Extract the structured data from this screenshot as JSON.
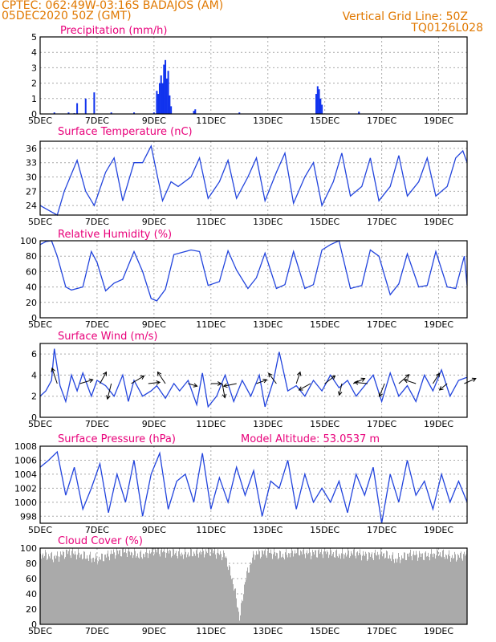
{
  "header": {
    "line1": "CPTEC:   062:49W-03:16S   BADAJOS (AM)",
    "line2": "05DEC2020 50Z (GMT)",
    "vertical_grid": "Vertical Grid Line: 50Z",
    "code": "TQ0126L028"
  },
  "colors": {
    "line": "#2244dd",
    "bar": "#1133ee",
    "cloud": "#aaaaaa",
    "title": "#e8007a",
    "header": "#e07800"
  },
  "chart_data": [
    {
      "type": "bar",
      "title": "Precipitation  (mm/h)",
      "x_ticks": [
        "5DEC",
        "7DEC",
        "9DEC",
        "11DEC",
        "13DEC",
        "15DEC",
        "17DEC",
        "19DEC"
      ],
      "ylim": [
        0,
        5
      ],
      "y_ticks": [
        0,
        1,
        2,
        3,
        4,
        5
      ],
      "x_range_days": [
        5,
        20
      ],
      "x": [
        5.5,
        6.0,
        6.2,
        6.3,
        6.6,
        6.9,
        7.5,
        8.3,
        9.0,
        9.1,
        9.15,
        9.2,
        9.25,
        9.3,
        9.35,
        9.4,
        9.45,
        9.5,
        9.55,
        9.6,
        10.4,
        10.45,
        12.0,
        14.7,
        14.75,
        14.8,
        14.85,
        14.9,
        16.2
      ],
      "values": [
        0.1,
        0.1,
        0.05,
        0.7,
        1.0,
        1.4,
        0.1,
        0.1,
        0.1,
        1.5,
        1.3,
        2.0,
        2.5,
        2.0,
        3.2,
        3.5,
        2.3,
        2.8,
        1.2,
        0.5,
        0.2,
        0.3,
        0.1,
        1.3,
        1.8,
        1.6,
        1.0,
        0.6,
        0.15
      ]
    },
    {
      "type": "line",
      "title": "Surface Temperature  (nC)",
      "ylim": [
        22,
        37.5
      ],
      "y_ticks": [
        24,
        27,
        30,
        33,
        36
      ],
      "x": [
        5.0,
        5.3,
        5.6,
        5.85,
        6.3,
        6.6,
        6.9,
        7.3,
        7.6,
        7.9,
        8.3,
        8.6,
        8.9,
        9.3,
        9.6,
        9.85,
        10.3,
        10.6,
        10.9,
        11.3,
        11.6,
        11.9,
        12.3,
        12.6,
        12.9,
        13.3,
        13.6,
        13.9,
        14.3,
        14.6,
        14.9,
        15.3,
        15.6,
        15.9,
        16.3,
        16.6,
        16.9,
        17.3,
        17.6,
        17.9,
        18.3,
        18.6,
        18.9,
        19.3,
        19.6,
        19.85,
        20.0
      ],
      "values": [
        24,
        23,
        22,
        27,
        33.5,
        27,
        24,
        31,
        34,
        25,
        33,
        33,
        36.5,
        25,
        29,
        28,
        30,
        34,
        25.5,
        29,
        33.5,
        25.5,
        30,
        34,
        25,
        31,
        35,
        24.5,
        30,
        33,
        24,
        29,
        35,
        26,
        28,
        34,
        25,
        28,
        34.5,
        26,
        29,
        34,
        26,
        28,
        34,
        35.5,
        33
      ]
    },
    {
      "type": "line",
      "title": "Relative Humidity  (%)",
      "ylim": [
        0,
        100
      ],
      "y_ticks": [
        0,
        20,
        40,
        60,
        80,
        100
      ],
      "x": [
        5.0,
        5.2,
        5.4,
        5.6,
        5.9,
        6.1,
        6.5,
        6.8,
        7.0,
        7.3,
        7.6,
        7.9,
        8.3,
        8.6,
        8.9,
        9.1,
        9.4,
        9.7,
        10.0,
        10.3,
        10.6,
        10.9,
        11.3,
        11.6,
        11.9,
        12.3,
        12.6,
        12.9,
        13.3,
        13.6,
        13.9,
        14.3,
        14.6,
        14.9,
        15.2,
        15.5,
        15.9,
        16.3,
        16.6,
        16.9,
        17.3,
        17.6,
        17.9,
        18.3,
        18.6,
        18.9,
        19.3,
        19.6,
        19.9,
        20.0
      ],
      "values": [
        95,
        99,
        100,
        80,
        40,
        36,
        40,
        86,
        72,
        35,
        45,
        50,
        86,
        60,
        25,
        22,
        37,
        82,
        85,
        88,
        86,
        42,
        47,
        87,
        62,
        38,
        52,
        84,
        38,
        43,
        86,
        38,
        43,
        88,
        95,
        100,
        38,
        42,
        88,
        80,
        30,
        44,
        83,
        40,
        42,
        86,
        40,
        38,
        80,
        42
      ]
    },
    {
      "type": "line",
      "title": "Surface Wind  (m/s)",
      "ylim": [
        0,
        7
      ],
      "y_ticks": [
        0,
        2,
        4,
        6
      ],
      "x": [
        5.0,
        5.2,
        5.4,
        5.5,
        5.7,
        5.9,
        6.1,
        6.3,
        6.5,
        6.8,
        7.0,
        7.3,
        7.6,
        7.9,
        8.1,
        8.3,
        8.6,
        8.9,
        9.1,
        9.4,
        9.7,
        9.9,
        10.2,
        10.5,
        10.7,
        10.9,
        11.2,
        11.5,
        11.8,
        12.1,
        12.4,
        12.7,
        12.9,
        13.2,
        13.4,
        13.7,
        14.0,
        14.3,
        14.6,
        14.9,
        15.2,
        15.5,
        15.8,
        16.1,
        16.4,
        16.7,
        17.0,
        17.3,
        17.6,
        17.9,
        18.2,
        18.5,
        18.8,
        19.1,
        19.4,
        19.7,
        20.0
      ],
      "values": [
        2,
        2.5,
        3.5,
        6.5,
        3,
        1.5,
        4,
        2.5,
        4.2,
        2,
        3.5,
        3,
        2,
        4,
        1.5,
        3.5,
        2,
        2.5,
        3,
        1.8,
        3.2,
        2.5,
        3.5,
        1.2,
        4.2,
        1,
        2,
        4,
        1.5,
        3.5,
        2,
        4,
        1,
        3.5,
        6.2,
        2.5,
        3,
        2,
        3.5,
        2.5,
        4,
        2.8,
        3.5,
        2,
        3,
        4,
        1.5,
        4.2,
        2,
        3,
        1.5,
        4,
        2.5,
        4.5,
        2,
        3.5,
        3.8
      ],
      "arrows": [
        [
          5.6,
          -0.4,
          1.2
        ],
        [
          6.4,
          1.0,
          0.3
        ],
        [
          7.1,
          0.5,
          0.9
        ],
        [
          7.5,
          -0.3,
          -1.2
        ],
        [
          8.2,
          1.0,
          0.6
        ],
        [
          8.8,
          0.9,
          0.1
        ],
        [
          9.4,
          -0.6,
          0.9
        ],
        [
          10.2,
          0.7,
          -0.2
        ],
        [
          11.0,
          0.8,
          0.0
        ],
        [
          11.4,
          0.2,
          -1.1
        ],
        [
          11.9,
          -1.0,
          -0.2
        ],
        [
          12.6,
          0.8,
          0.3
        ],
        [
          13.3,
          -0.6,
          0.8
        ],
        [
          14.0,
          0.3,
          0.9
        ],
        [
          14.5,
          -0.9,
          -0.5
        ],
        [
          15.0,
          0.8,
          0.6
        ],
        [
          15.6,
          -0.2,
          -0.9
        ],
        [
          16.0,
          0.9,
          0.4
        ],
        [
          16.5,
          -1.0,
          0.1
        ],
        [
          17.1,
          -0.4,
          -1.0
        ],
        [
          17.6,
          0.8,
          0.7
        ],
        [
          18.2,
          -0.9,
          0.3
        ],
        [
          18.8,
          0.5,
          0.8
        ],
        [
          19.3,
          -0.6,
          -0.5
        ],
        [
          19.9,
          0.9,
          0.4
        ]
      ]
    },
    {
      "type": "line",
      "title": "Surface Pressure  (hPa)",
      "subtitle": "Model Altitude: 53.0537  m",
      "ylim": [
        997,
        1008
      ],
      "y_ticks": [
        998,
        1000,
        1002,
        1004,
        1006,
        1008
      ],
      "x": [
        5.0,
        5.3,
        5.6,
        5.9,
        6.2,
        6.5,
        6.8,
        7.1,
        7.4,
        7.7,
        8.0,
        8.3,
        8.6,
        8.9,
        9.2,
        9.5,
        9.8,
        10.1,
        10.4,
        10.7,
        11.0,
        11.3,
        11.6,
        11.9,
        12.2,
        12.5,
        12.8,
        13.1,
        13.4,
        13.7,
        14.0,
        14.3,
        14.6,
        14.9,
        15.2,
        15.5,
        15.8,
        16.1,
        16.4,
        16.7,
        17.0,
        17.3,
        17.6,
        17.9,
        18.2,
        18.5,
        18.8,
        19.1,
        19.4,
        19.7,
        20.0
      ],
      "values": [
        1005,
        1006,
        1007.2,
        1001,
        1005,
        999,
        1002,
        1005.5,
        998.5,
        1004,
        1000,
        1006,
        998,
        1004,
        1007,
        999,
        1003,
        1004,
        1000,
        1007,
        999,
        1003.5,
        1000,
        1005,
        1001,
        1004.5,
        998,
        1003,
        1002,
        1006,
        999,
        1004,
        1000,
        1002,
        1000,
        1003,
        998.5,
        1004,
        1001,
        1005,
        997,
        1004,
        1000,
        1006,
        1001,
        1003,
        999,
        1004,
        1000,
        1003,
        1000
      ]
    },
    {
      "type": "bar",
      "title": "Cloud Cover  (%)",
      "ylim": [
        0,
        100
      ],
      "y_ticks": [
        0,
        20,
        40,
        60,
        80,
        100
      ],
      "x_range_days": [
        5,
        20
      ],
      "profile": [
        [
          5.0,
          92
        ],
        [
          5.5,
          88
        ],
        [
          6.0,
          95
        ],
        [
          6.5,
          90
        ],
        [
          7.0,
          85
        ],
        [
          7.5,
          93
        ],
        [
          8.0,
          96
        ],
        [
          8.5,
          90
        ],
        [
          9.0,
          97
        ],
        [
          9.5,
          95
        ],
        [
          10.0,
          92
        ],
        [
          10.5,
          94
        ],
        [
          11.0,
          96
        ],
        [
          11.5,
          90
        ],
        [
          11.8,
          50
        ],
        [
          12.0,
          8
        ],
        [
          12.2,
          60
        ],
        [
          12.5,
          92
        ],
        [
          13.0,
          95
        ],
        [
          13.5,
          90
        ],
        [
          14.0,
          96
        ],
        [
          14.5,
          93
        ],
        [
          15.0,
          95
        ],
        [
          15.5,
          91
        ],
        [
          16.0,
          94
        ],
        [
          16.5,
          90
        ],
        [
          17.0,
          93
        ],
        [
          17.5,
          85
        ],
        [
          18.0,
          92
        ],
        [
          18.5,
          90
        ],
        [
          19.0,
          93
        ],
        [
          19.5,
          88
        ],
        [
          20.0,
          92
        ]
      ]
    }
  ]
}
